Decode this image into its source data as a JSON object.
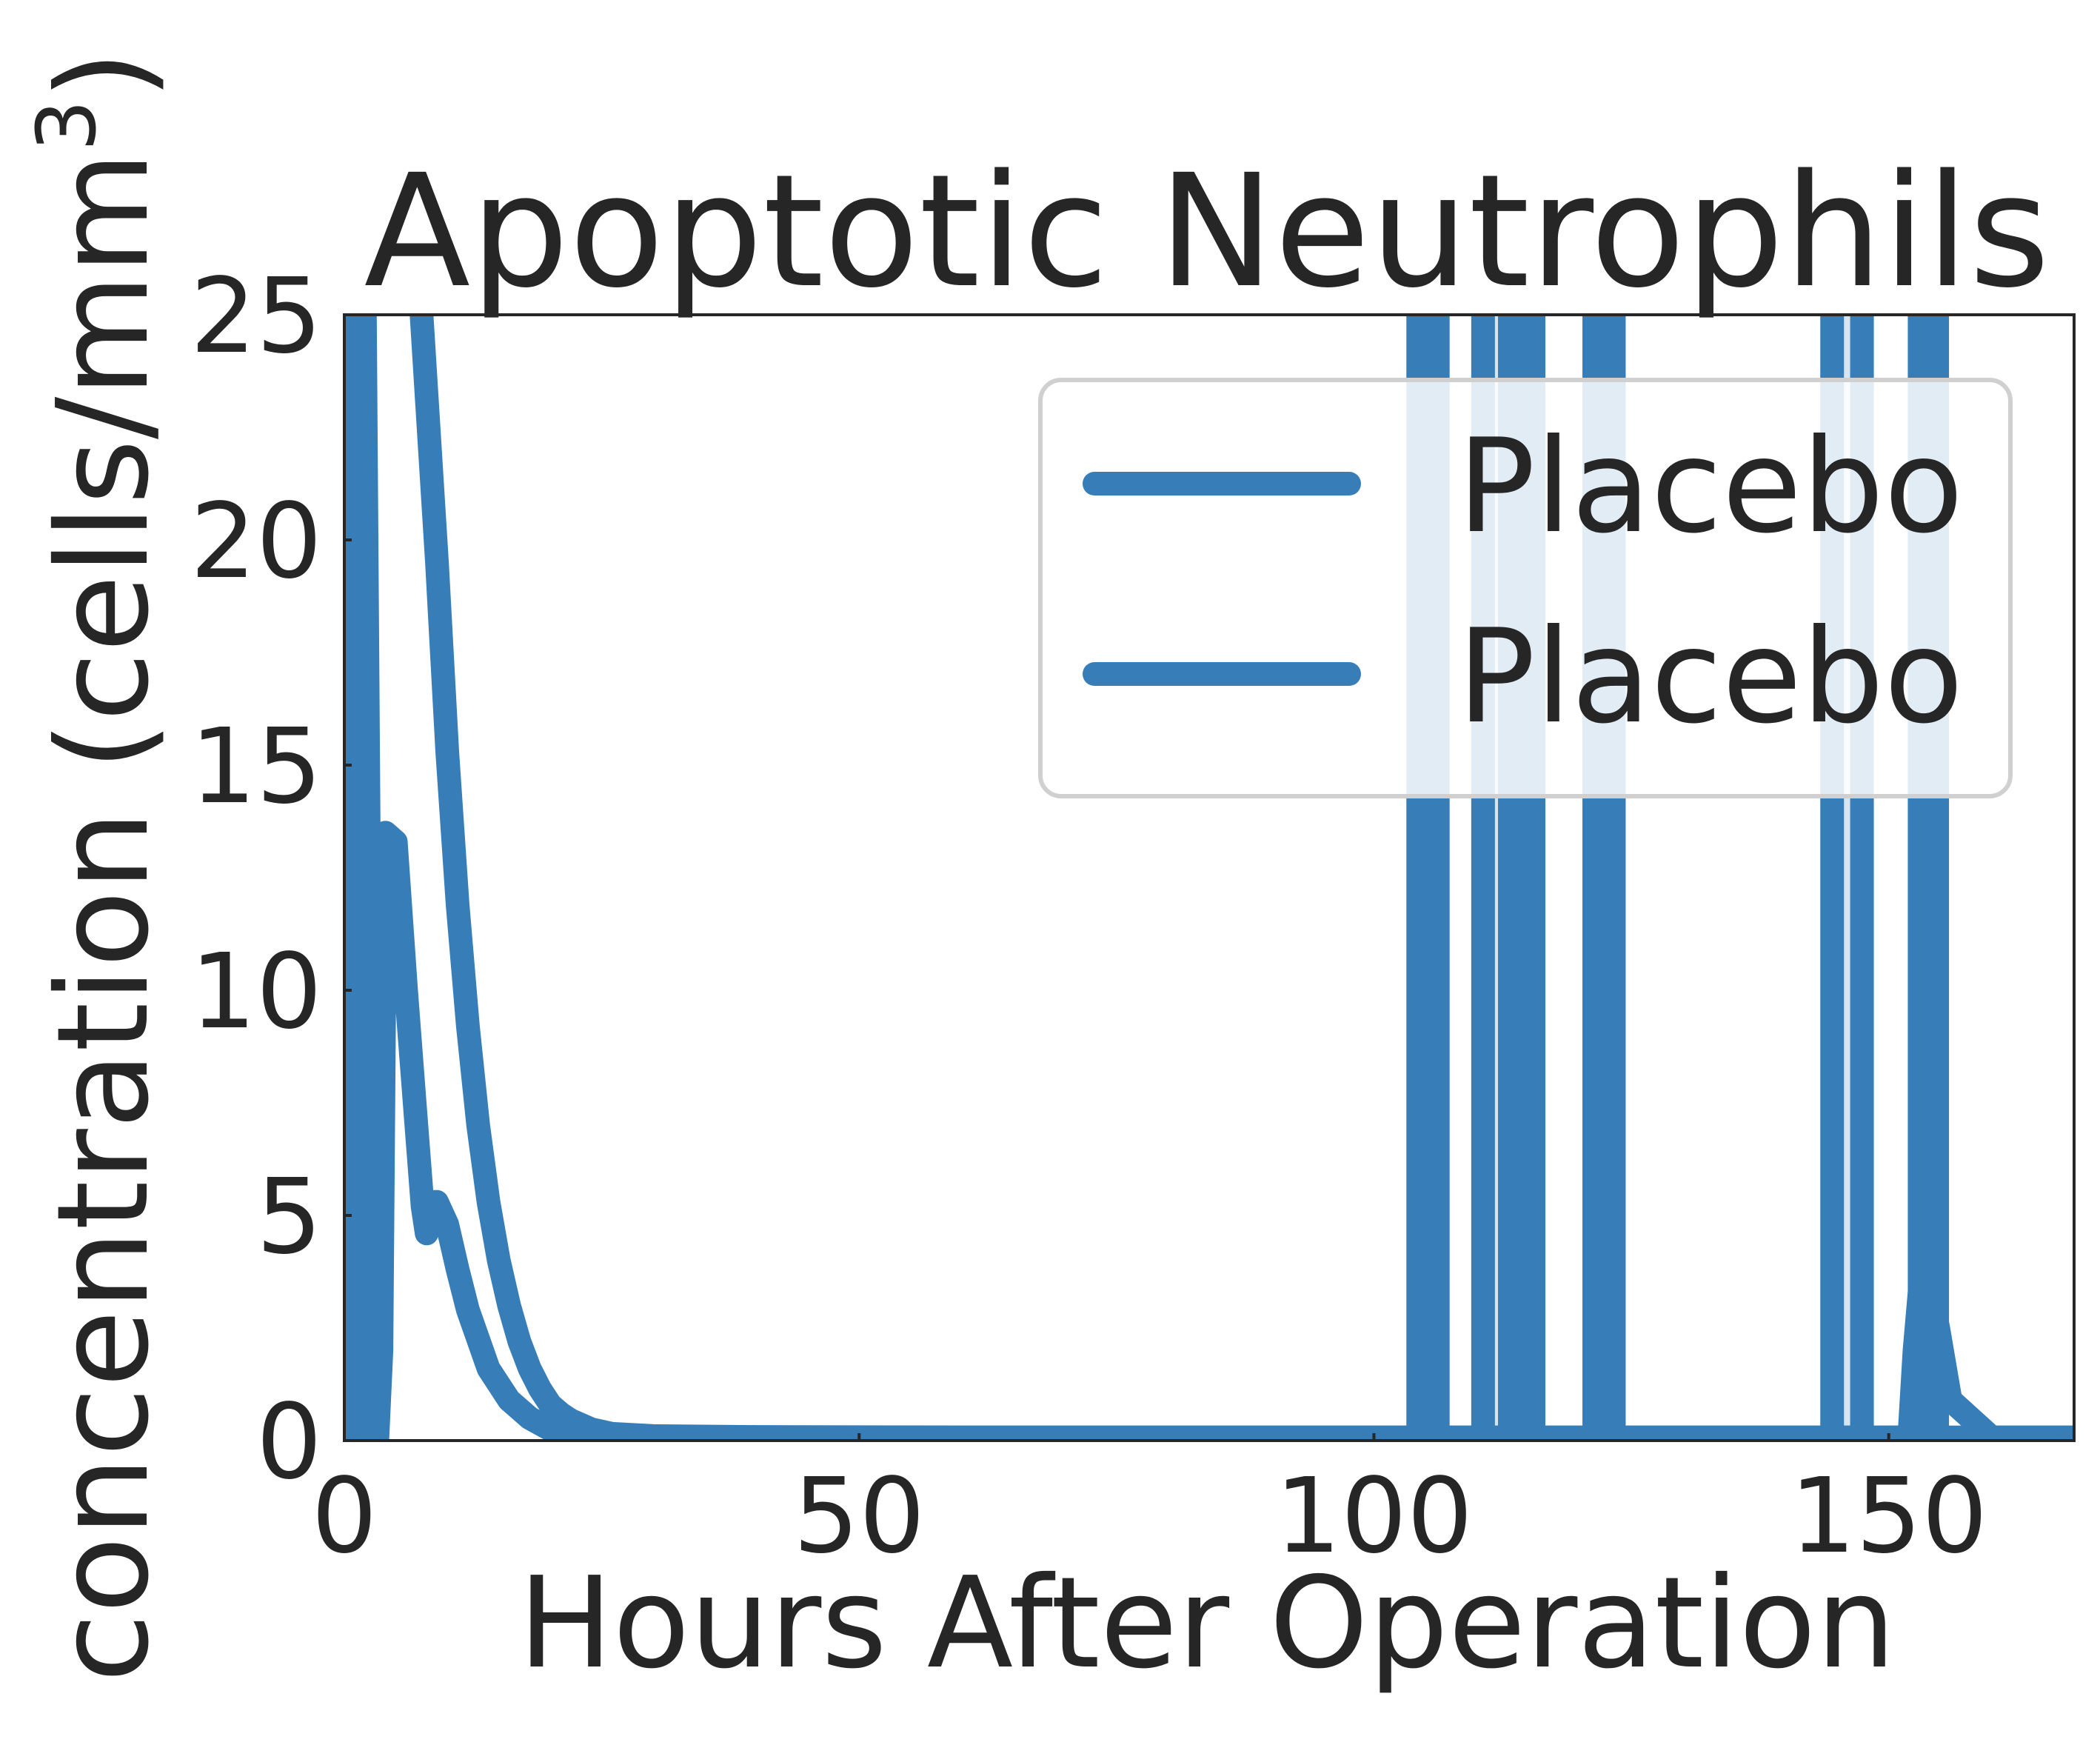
{
  "chart_data": {
    "type": "line",
    "title": "Apoptotic Neutrophils",
    "xlabel": "Hours After Operation",
    "ylabel_main": "concentration (cells/mm",
    "ylabel_sup": "3",
    "ylabel_close": ")",
    "xlim": [
      0,
      168
    ],
    "ylim": [
      0,
      25
    ],
    "xticks": [
      0,
      50,
      100,
      150
    ],
    "yticks": [
      0,
      5,
      10,
      15,
      20,
      25
    ],
    "grid": false,
    "legend_position": "top-right",
    "color": "#377eb8",
    "series": [
      {
        "name": "Placebo",
        "x": [
          0,
          0.8,
          1.2,
          2,
          2.8,
          3.2,
          3.6,
          4,
          5,
          6,
          7,
          7.6,
          8,
          8.3,
          9,
          10,
          11,
          12,
          14,
          16,
          18,
          20,
          22,
          24,
          26,
          30,
          40,
          60,
          80,
          100,
          104,
          108,
          112,
          116,
          120,
          130,
          140,
          150,
          152,
          152.5,
          153,
          154,
          154.8,
          156,
          160,
          168
        ],
        "y": [
          0,
          0,
          25,
          25,
          0,
          0,
          2,
          13.5,
          13.3,
          10,
          7,
          5.2,
          4.6,
          5.3,
          5.3,
          4.8,
          3.8,
          2.9,
          1.6,
          0.9,
          0.5,
          0.25,
          0.12,
          0.08,
          0.07,
          0.07,
          0.07,
          0.07,
          0.07,
          0.07,
          0.07,
          0.07,
          0.07,
          0.07,
          0.07,
          0.07,
          0.07,
          0.07,
          0.07,
          2,
          3.3,
          3.4,
          2.5,
          0.9,
          0.07,
          0.07
        ]
      },
      {
        "name": "Placebo",
        "x": [
          7.5,
          9,
          10,
          11,
          12,
          13,
          14,
          15,
          16,
          17,
          18,
          19,
          20,
          21,
          22,
          24,
          26,
          30,
          40,
          60,
          80,
          100,
          120,
          140,
          160,
          168
        ],
        "y": [
          25,
          19.5,
          15.3,
          11.9,
          9.2,
          7.0,
          5.3,
          4.0,
          3.0,
          2.2,
          1.6,
          1.15,
          0.8,
          0.6,
          0.45,
          0.25,
          0.15,
          0.1,
          0.08,
          0.07,
          0.07,
          0.07,
          0.07,
          0.07,
          0.07,
          0.07
        ]
      }
    ],
    "spikes": [
      {
        "x": [
          104.3,
          106.2
        ]
      },
      {
        "x": [
          110.6,
          113.2,
          114.1,
          115.5
        ]
      },
      {
        "x": [
          121.4,
          123.3
        ]
      },
      {
        "x": [
          144.5,
          147.4
        ]
      },
      {
        "x": [
          153.0,
          154.7
        ]
      }
    ]
  }
}
